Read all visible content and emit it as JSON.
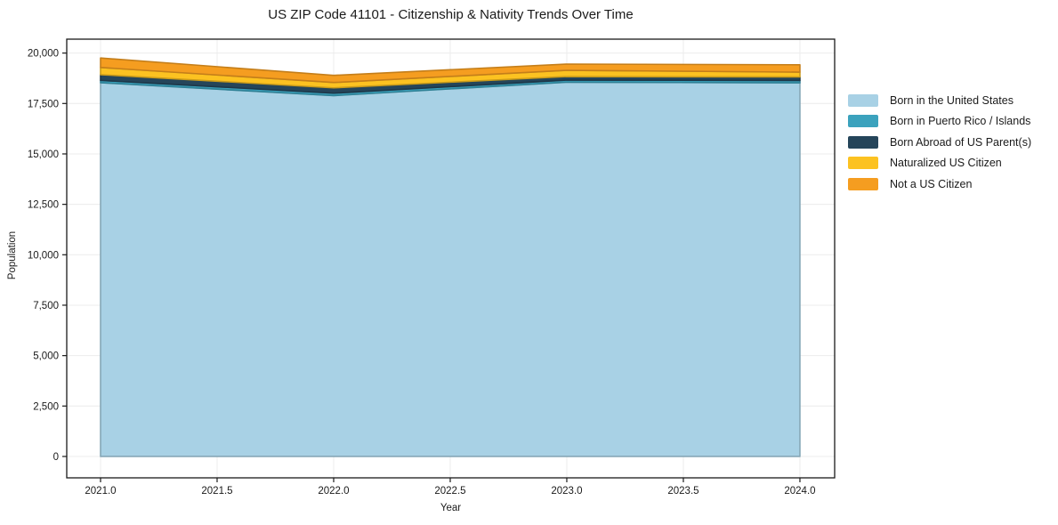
{
  "title": "US ZIP Code 41101 - Citizenship & Nativity Trends Over Time",
  "chart_data": {
    "type": "area",
    "stacked": true,
    "title": "US ZIP Code 41101 - Citizenship & Nativity Trends Over Time",
    "xlabel": "Year",
    "ylabel": "Population",
    "x": [
      2021,
      2022,
      2023,
      2024
    ],
    "series": [
      {
        "name": "Born in the United States",
        "color": "#a8d1e5",
        "values": [
          18530,
          17890,
          18555,
          18525
        ]
      },
      {
        "name": "Born in Puerto Rico / Islands",
        "color": "#3ba2bd",
        "values": [
          115,
          120,
          105,
          115
        ]
      },
      {
        "name": "Born Abroad of US Parent(s)",
        "color": "#25455a",
        "values": [
          285,
          265,
          175,
          175
        ]
      },
      {
        "name": "Naturalized US Citizen",
        "color": "#fcc221",
        "values": [
          355,
          265,
          310,
          240
        ]
      },
      {
        "name": "Not a US Citizen",
        "color": "#f59d20",
        "values": [
          470,
          355,
          310,
          365
        ]
      }
    ],
    "xticks": {
      "values": [
        2021.0,
        2021.5,
        2022.0,
        2022.5,
        2023.0,
        2023.5,
        2024.0
      ],
      "labels": [
        "2021.0",
        "2021.5",
        "2022.0",
        "2022.5",
        "2023.0",
        "2023.5",
        "2024.0"
      ]
    },
    "yticks": {
      "values": [
        0,
        2500,
        5000,
        7500,
        10000,
        12500,
        15000,
        17500,
        20000
      ],
      "labels": [
        "0",
        "2,500",
        "5,000",
        "7,500",
        "10,000",
        "12,500",
        "15,000",
        "17,500",
        "20,000"
      ]
    },
    "xlim": [
      2020.855,
      2024.149
    ],
    "ylim": [
      -1060,
      20690
    ],
    "grid": true,
    "grid_color": "#ececec",
    "axis_color": "#1a1a1a",
    "legend_position": "right-outside"
  }
}
